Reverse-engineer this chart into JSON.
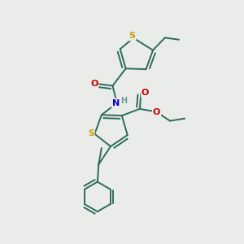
{
  "bg_color": "#eaece9",
  "bond_color": "#2d6b5e",
  "bond_width": 1.4,
  "atom_colors": {
    "S": "#c8a000",
    "N": "#0000cc",
    "O": "#cc0000",
    "H": "#6a9a90",
    "C": "#2d6b5e"
  },
  "figsize": [
    3.0,
    3.0
  ],
  "dpi": 100
}
